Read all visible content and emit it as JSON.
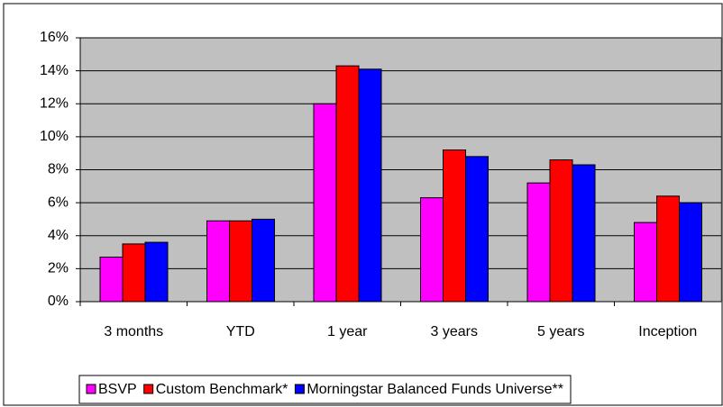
{
  "chart_data": {
    "type": "bar",
    "categories": [
      "3 months",
      "YTD",
      "1 year",
      "3 years",
      "5 years",
      "Inception"
    ],
    "series": [
      {
        "name": "BSVP",
        "color": "#ff00ff",
        "values": [
          2.7,
          4.9,
          12.0,
          6.3,
          7.2,
          4.8
        ]
      },
      {
        "name": "Custom Benchmark*",
        "color": "#ff0000",
        "values": [
          3.5,
          4.9,
          14.3,
          9.2,
          8.6,
          6.4
        ]
      },
      {
        "name": "Morningstar Balanced Funds Universe**",
        "color": "#0000ff",
        "values": [
          3.6,
          5.0,
          14.1,
          8.8,
          8.3,
          6.0
        ]
      }
    ],
    "ylim": [
      0,
      16
    ],
    "yticks": [
      {
        "value": 0,
        "label": "0%"
      },
      {
        "value": 2,
        "label": "2%"
      },
      {
        "value": 4,
        "label": "4%"
      },
      {
        "value": 6,
        "label": "6%"
      },
      {
        "value": 8,
        "label": "8%"
      },
      {
        "value": 10,
        "label": "10%"
      },
      {
        "value": 12,
        "label": "12%"
      },
      {
        "value": 14,
        "label": "14%"
      },
      {
        "value": 16,
        "label": "16%"
      }
    ],
    "grid": true,
    "legend": "bottom",
    "plot_background": "#c0c0c0"
  }
}
